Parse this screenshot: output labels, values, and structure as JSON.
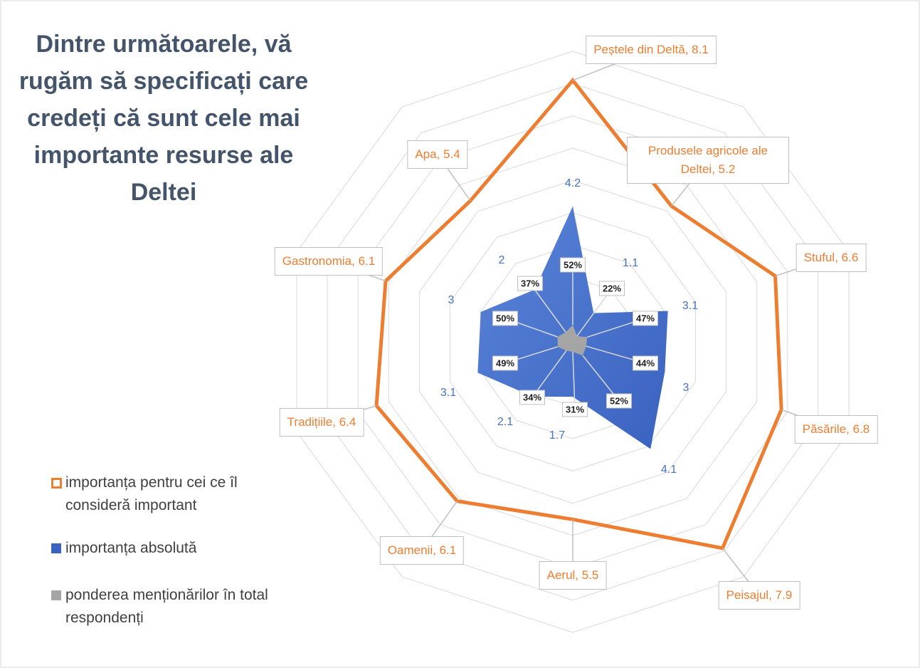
{
  "chart_data": {
    "type": "radar",
    "title": "Dintre următoarele, vă rugăm să specificați care credeți că sunt cele mai importante resurse ale Deltei",
    "categories": [
      "Peștele din Deltă",
      "Produsele agricole ale Deltei",
      "Stuful",
      "Păsările",
      "Peisajul",
      "Aerul",
      "Oamenii",
      "Tradițiile",
      "Gastronomia",
      "Apa"
    ],
    "series": [
      {
        "name": "importanța pentru cei ce îl consideră important",
        "color": "#ed7d31",
        "values": [
          8.1,
          5.2,
          6.6,
          6.8,
          7.9,
          5.5,
          6.1,
          6.4,
          6.1,
          5.4
        ]
      },
      {
        "name": "importanța absolută",
        "color": "#3a62c0",
        "values": [
          4.2,
          1.1,
          3.1,
          3.0,
          4.1,
          1.7,
          2.1,
          3.1,
          3.0,
          2.0
        ]
      },
      {
        "name": "ponderea menționărilor în total respondenți",
        "color": "#a5a5a5",
        "values": [
          0.52,
          0.22,
          0.47,
          0.44,
          0.52,
          0.31,
          0.34,
          0.49,
          0.5,
          0.37
        ],
        "value_labels": [
          "52%",
          "22%",
          "47%",
          "44%",
          "52%",
          "31%",
          "34%",
          "49%",
          "50%",
          "37%"
        ]
      }
    ],
    "ylim": [
      0,
      9
    ],
    "yticks": [
      0,
      1,
      2,
      3,
      4,
      5,
      6,
      7,
      8,
      9
    ],
    "grid": true,
    "legend": "left"
  }
}
